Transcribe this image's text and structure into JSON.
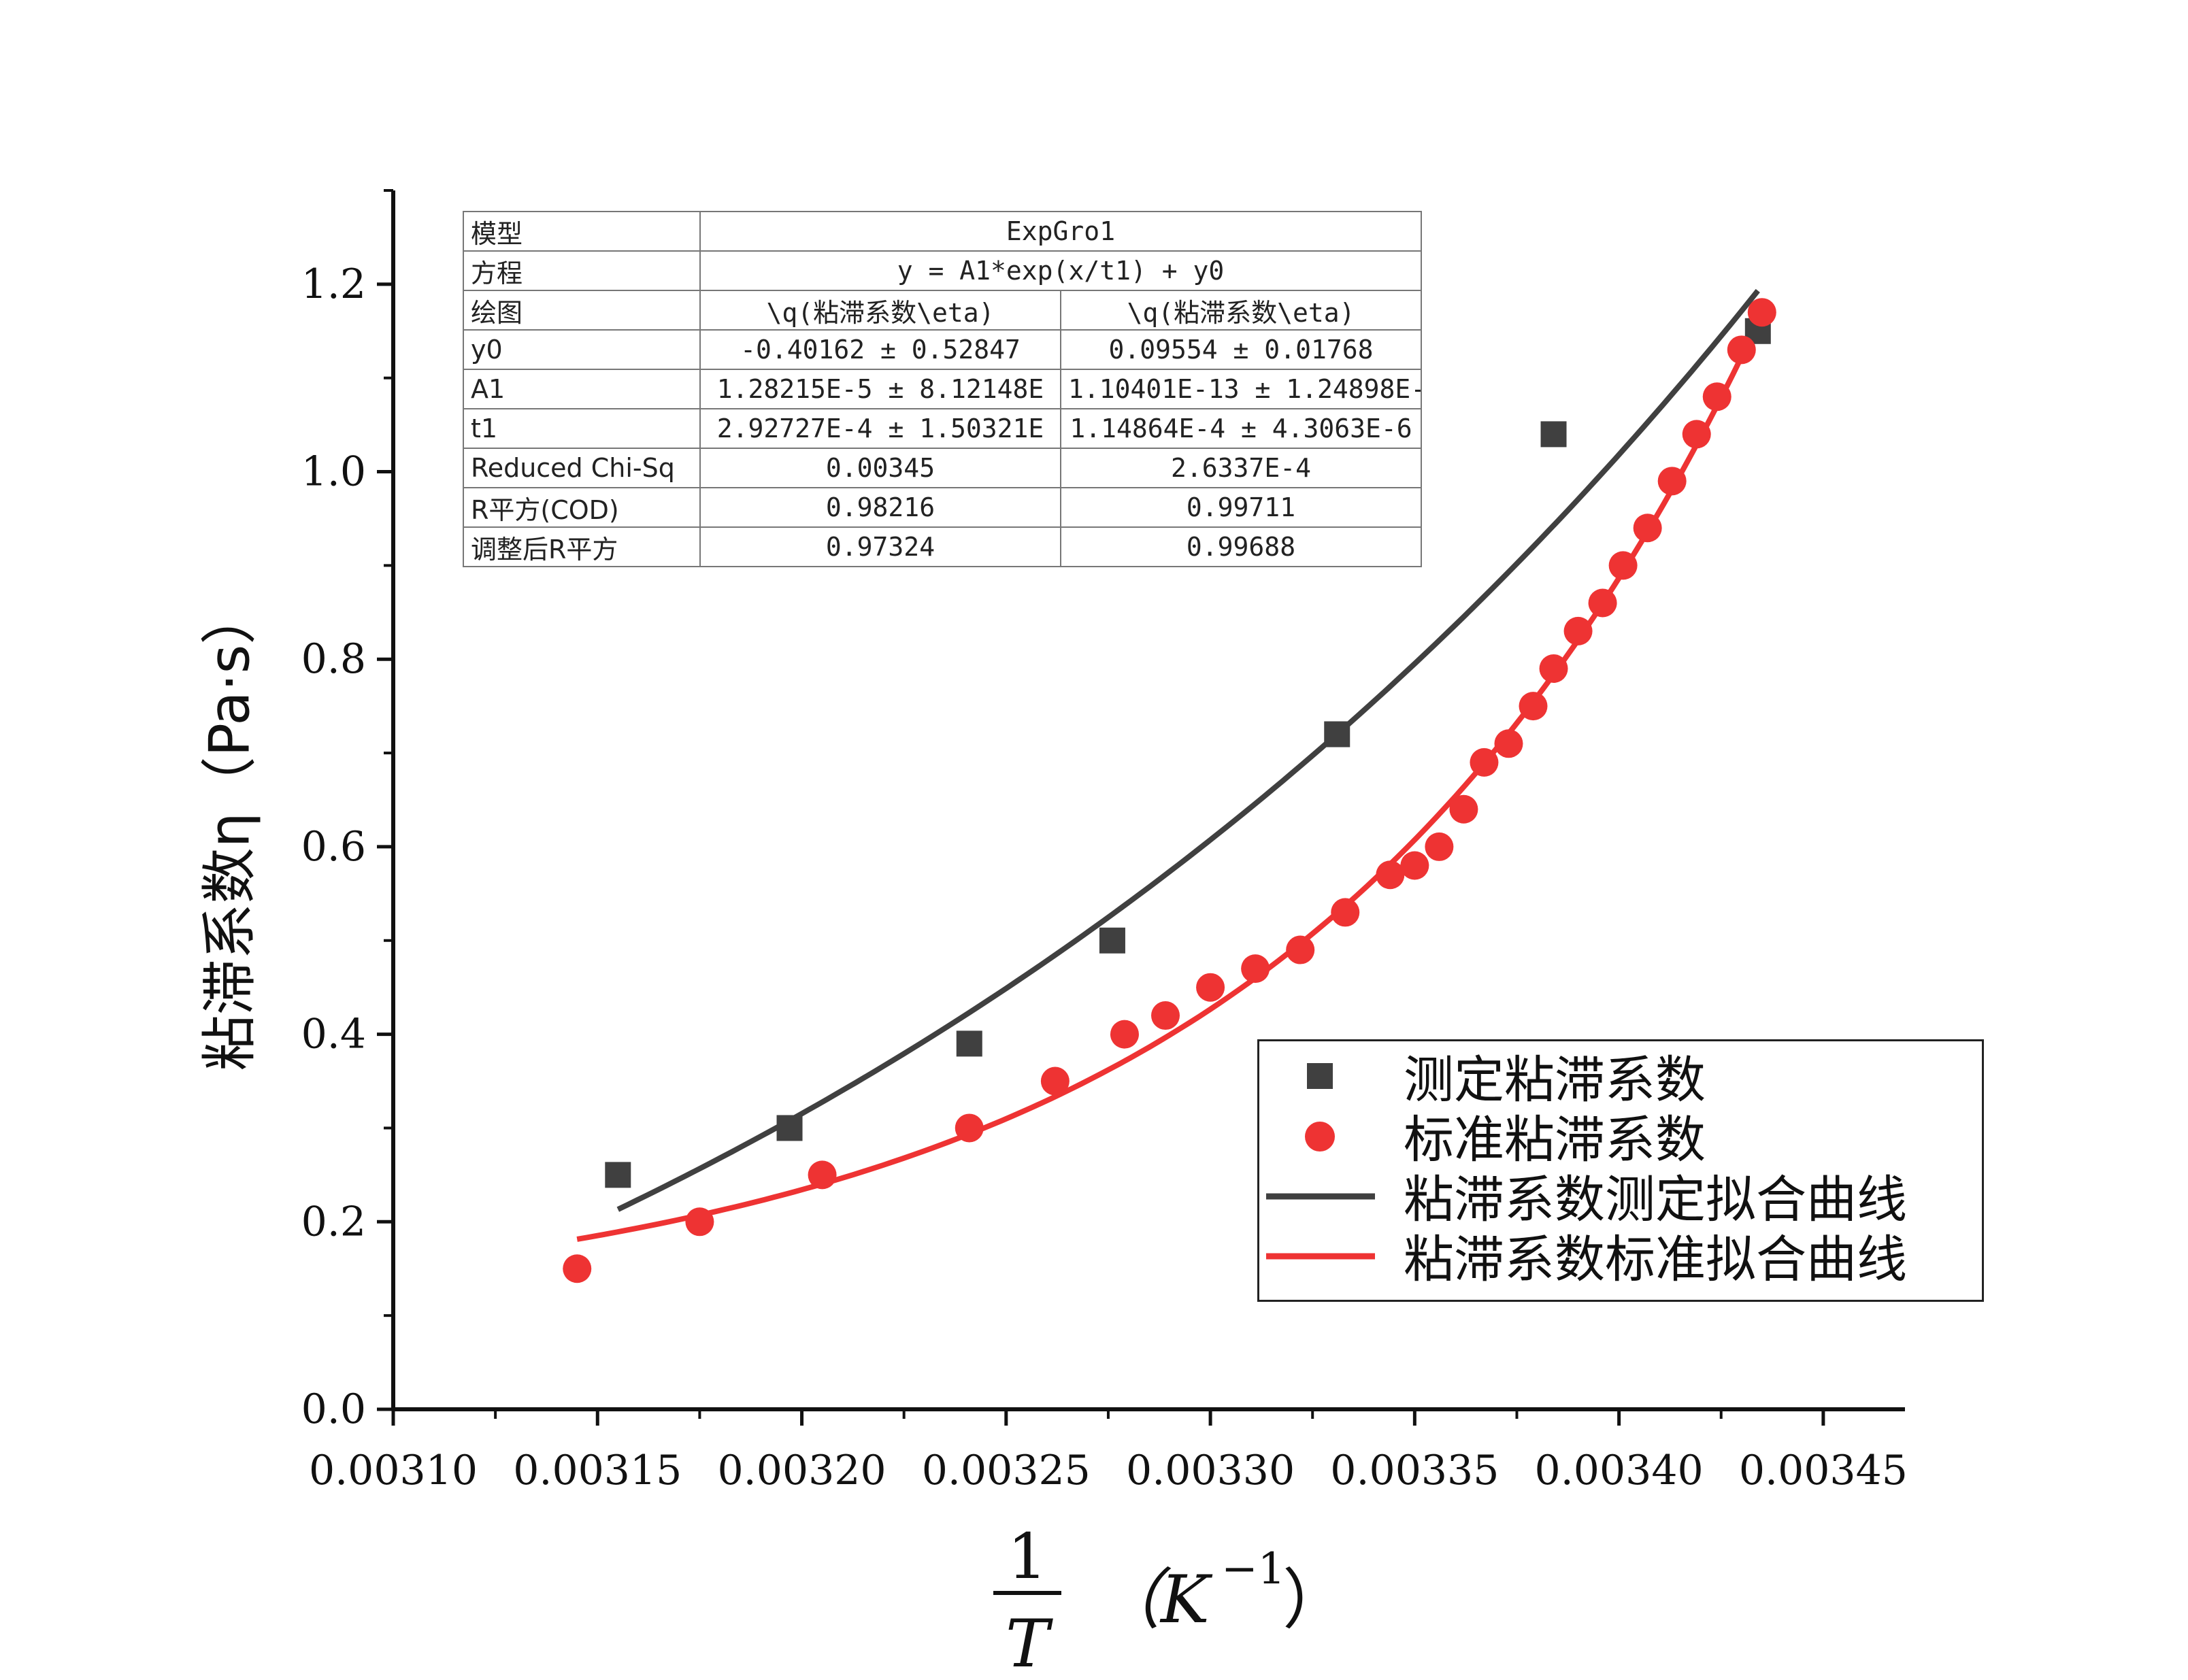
{
  "chart_data": {
    "type": "scatter",
    "xlim": [
      0.0031,
      0.00347
    ],
    "ylim": [
      0.0,
      1.3
    ],
    "x_ticks": [
      "0.00310",
      "0.00315",
      "0.00320",
      "0.00325",
      "0.00330",
      "0.00335",
      "0.00340",
      "0.00345"
    ],
    "y_ticks": [
      "0.0",
      "0.2",
      "0.4",
      "0.6",
      "0.8",
      "1.0",
      "1.2"
    ],
    "ylabel": "粘滞系数η（Pa·s）",
    "xlabel": {
      "numerator": "1",
      "denominator": "T",
      "unit": "（K",
      "exponent": "−1",
      "close": "）"
    },
    "series": [
      {
        "name": "测定粘滞系数",
        "kind": "scatter",
        "marker": "square",
        "color": "#404040",
        "points": [
          [
            0.003155,
            0.25
          ],
          [
            0.003197,
            0.3
          ],
          [
            0.003241,
            0.39
          ],
          [
            0.003276,
            0.5
          ],
          [
            0.003331,
            0.72
          ],
          [
            0.003384,
            1.04
          ],
          [
            0.003434,
            1.15
          ]
        ]
      },
      {
        "name": "标准粘滞系数",
        "kind": "scatter",
        "marker": "circle",
        "color": "#ee3333",
        "points": [
          [
            0.003145,
            0.15
          ],
          [
            0.003175,
            0.2
          ],
          [
            0.003205,
            0.25
          ],
          [
            0.003241,
            0.3
          ],
          [
            0.003262,
            0.35
          ],
          [
            0.003279,
            0.4
          ],
          [
            0.003289,
            0.42
          ],
          [
            0.0033,
            0.45
          ],
          [
            0.003311,
            0.47
          ],
          [
            0.003322,
            0.49
          ],
          [
            0.003333,
            0.53
          ],
          [
            0.003344,
            0.57
          ],
          [
            0.00335,
            0.58
          ],
          [
            0.003356,
            0.6
          ],
          [
            0.003362,
            0.64
          ],
          [
            0.003367,
            0.69
          ],
          [
            0.003373,
            0.71
          ],
          [
            0.003379,
            0.75
          ],
          [
            0.003384,
            0.79
          ],
          [
            0.00339,
            0.83
          ],
          [
            0.003396,
            0.86
          ],
          [
            0.003401,
            0.9
          ],
          [
            0.003407,
            0.94
          ],
          [
            0.003413,
            0.99
          ],
          [
            0.003419,
            1.04
          ],
          [
            0.003424,
            1.08
          ],
          [
            0.00343,
            1.13
          ],
          [
            0.003435,
            1.17
          ]
        ]
      },
      {
        "name": "粘滞系数测定拟合曲线",
        "kind": "line",
        "color": "#404040",
        "model": {
          "y0": -0.40162,
          "A1": 1.28215e-05,
          "t1": 0.000292727
        },
        "x_range": [
          0.003155,
          0.003434
        ]
      },
      {
        "name": "粘滞系数标准拟合曲线",
        "kind": "line",
        "color": "#ee3333",
        "model": {
          "y0": 0.09554,
          "A1": 1.10401e-13,
          "t1": 0.000114864
        },
        "x_range": [
          0.003145,
          0.003435
        ]
      }
    ]
  },
  "fit_table": {
    "model_label": "模型",
    "model_value": "ExpGro1",
    "equation_label": "方程",
    "equation_value": "y = A1*exp(x/t1) + y0",
    "plot_label": "绘图",
    "plot_col1": "\\q(粘滞系数\\eta)",
    "plot_col2": "\\q(粘滞系数\\eta)",
    "rows": [
      {
        "label": "y0",
        "c1": "-0.40162 ± 0.52847",
        "c2": "0.09554 ± 0.01768"
      },
      {
        "label": "A1",
        "c1": "1.28215E-5 ± 8.12148E",
        "c2": "1.10401E-13 ± 1.24898E-"
      },
      {
        "label": "t1",
        "c1": "2.92727E-4 ± 1.50321E",
        "c2": "1.14864E-4 ± 4.3063E-6"
      },
      {
        "label": "Reduced Chi-Sq",
        "c1": "0.00345",
        "c2": "2.6337E-4"
      },
      {
        "label": "R平方(COD)",
        "c1": "0.98216",
        "c2": "0.99711"
      },
      {
        "label": "调整后R平方",
        "c1": "0.97324",
        "c2": "0.99688"
      }
    ]
  },
  "legend": {
    "placement": "bottom-right",
    "items": [
      "测定粘滞系数",
      "标准粘滞系数",
      "粘滞系数测定拟合曲线",
      "粘滞系数标准拟合曲线"
    ]
  }
}
